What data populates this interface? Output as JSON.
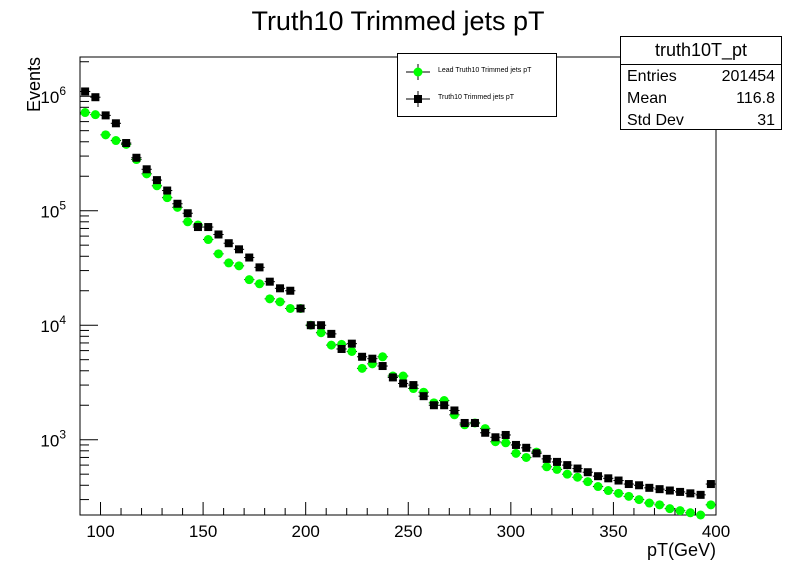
{
  "chart_data": {
    "type": "scatter",
    "title": "Truth10 Trimmed jets pT",
    "xlabel": "pT(GeV)",
    "ylabel": "Events",
    "xlim": [
      90,
      400
    ],
    "ylim": [
      220,
      2200000
    ],
    "yscale": "log",
    "x_ticks": [
      "100",
      "150",
      "200",
      "250",
      "300",
      "350",
      "400"
    ],
    "y_ticks": [
      "10^3",
      "10^4",
      "10^5",
      "10^6"
    ],
    "grid": false,
    "legend_position": "top-center-right",
    "x": [
      92.5,
      97.5,
      102.5,
      107.5,
      112.5,
      117.5,
      122.5,
      127.5,
      132.5,
      137.5,
      142.5,
      147.5,
      152.5,
      157.5,
      162.5,
      167.5,
      172.5,
      177.5,
      182.5,
      187.5,
      192.5,
      197.5,
      202.5,
      207.5,
      212.5,
      217.5,
      222.5,
      227.5,
      232.5,
      237.5,
      242.5,
      247.5,
      252.5,
      257.5,
      262.5,
      267.5,
      272.5,
      277.5,
      282.5,
      287.5,
      292.5,
      297.5,
      302.5,
      307.5,
      312.5,
      317.5,
      322.5,
      327.5,
      332.5,
      337.5,
      342.5,
      347.5,
      352.5,
      357.5,
      362.5,
      367.5,
      372.5,
      377.5,
      382.5,
      387.5,
      392.5,
      397.5
    ],
    "series": [
      {
        "name": "Lead Truth10 Trimmed jets pT",
        "color": "#00ff00",
        "marker": "circle",
        "values": [
          720000,
          690000,
          460000,
          410000,
          380000,
          280000,
          210000,
          165000,
          130000,
          107000,
          80000,
          75000,
          56000,
          42000,
          35000,
          33000,
          25000,
          23000,
          17000,
          16000,
          14000,
          14000,
          10000,
          8600,
          6700,
          6800,
          5900,
          4200,
          4600,
          5300,
          3600,
          3600,
          2800,
          2600,
          2100,
          2200,
          1650,
          1350,
          1400,
          1250,
          960,
          940,
          760,
          700,
          780,
          580,
          550,
          500,
          470,
          430,
          390,
          360,
          340,
          320,
          300,
          280,
          270,
          250,
          240,
          230,
          220,
          270
        ]
      },
      {
        "name": "Truth10 Trimmed jets pT",
        "color": "#000000",
        "marker": "square",
        "values": [
          1100000,
          980000,
          680000,
          580000,
          390000,
          290000,
          230000,
          185000,
          150000,
          115000,
          95000,
          72000,
          72000,
          62000,
          52000,
          46000,
          39000,
          32000,
          24000,
          21000,
          20000,
          14000,
          10000,
          10000,
          8400,
          6200,
          6900,
          5300,
          5100,
          4400,
          3500,
          3100,
          3000,
          2400,
          2000,
          2000,
          1800,
          1400,
          1400,
          1150,
          1050,
          1100,
          900,
          850,
          760,
          680,
          640,
          600,
          560,
          520,
          480,
          460,
          440,
          410,
          400,
          380,
          370,
          360,
          350,
          340,
          330,
          410
        ]
      }
    ]
  },
  "stats_box": {
    "title": "truth10T_pt",
    "rows": [
      {
        "label": "Entries",
        "value": "201454"
      },
      {
        "label": "Mean",
        "value": "116.8"
      },
      {
        "label": "Std Dev",
        "value": "31"
      }
    ]
  }
}
